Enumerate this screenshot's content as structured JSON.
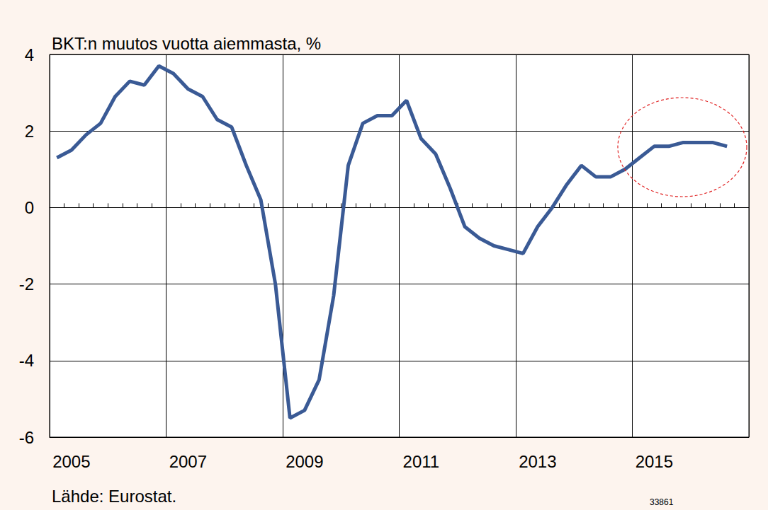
{
  "chart_data": {
    "type": "line",
    "title": "BKT:n muutos vuotta aiemmasta, %",
    "source": "Lähde: Eurostat.",
    "chart_id": "33861",
    "categories": [
      null,
      "2005",
      null,
      null,
      null,
      null,
      null,
      null,
      null,
      "2007",
      null,
      null,
      null,
      null,
      null,
      null,
      null,
      "2009",
      null,
      null,
      null,
      null,
      null,
      null,
      null,
      "2011",
      null,
      null,
      null,
      null,
      null,
      null,
      null,
      "2013",
      null,
      null,
      null,
      null,
      null,
      null,
      null,
      "2015",
      null,
      null,
      null,
      null,
      null,
      null
    ],
    "values": [
      1.3,
      1.5,
      1.9,
      2.2,
      2.9,
      3.3,
      3.2,
      3.7,
      3.5,
      3.1,
      2.9,
      2.3,
      2.1,
      1.1,
      0.2,
      -2.0,
      -5.5,
      -5.3,
      -4.5,
      -2.3,
      1.1,
      2.2,
      2.4,
      2.4,
      2.8,
      1.8,
      1.4,
      0.5,
      -0.5,
      -0.8,
      -1.0,
      -1.1,
      -1.2,
      -0.5,
      0.0,
      0.6,
      1.1,
      0.8,
      0.8,
      1.0,
      1.3,
      1.6,
      1.6,
      1.7,
      1.7,
      1.7,
      1.6,
      null
    ],
    "color": "#3a5a95",
    "ylim": [
      -6,
      4
    ],
    "yticks": [
      -6,
      -4,
      -2,
      0,
      2,
      4
    ],
    "grid": true
  }
}
